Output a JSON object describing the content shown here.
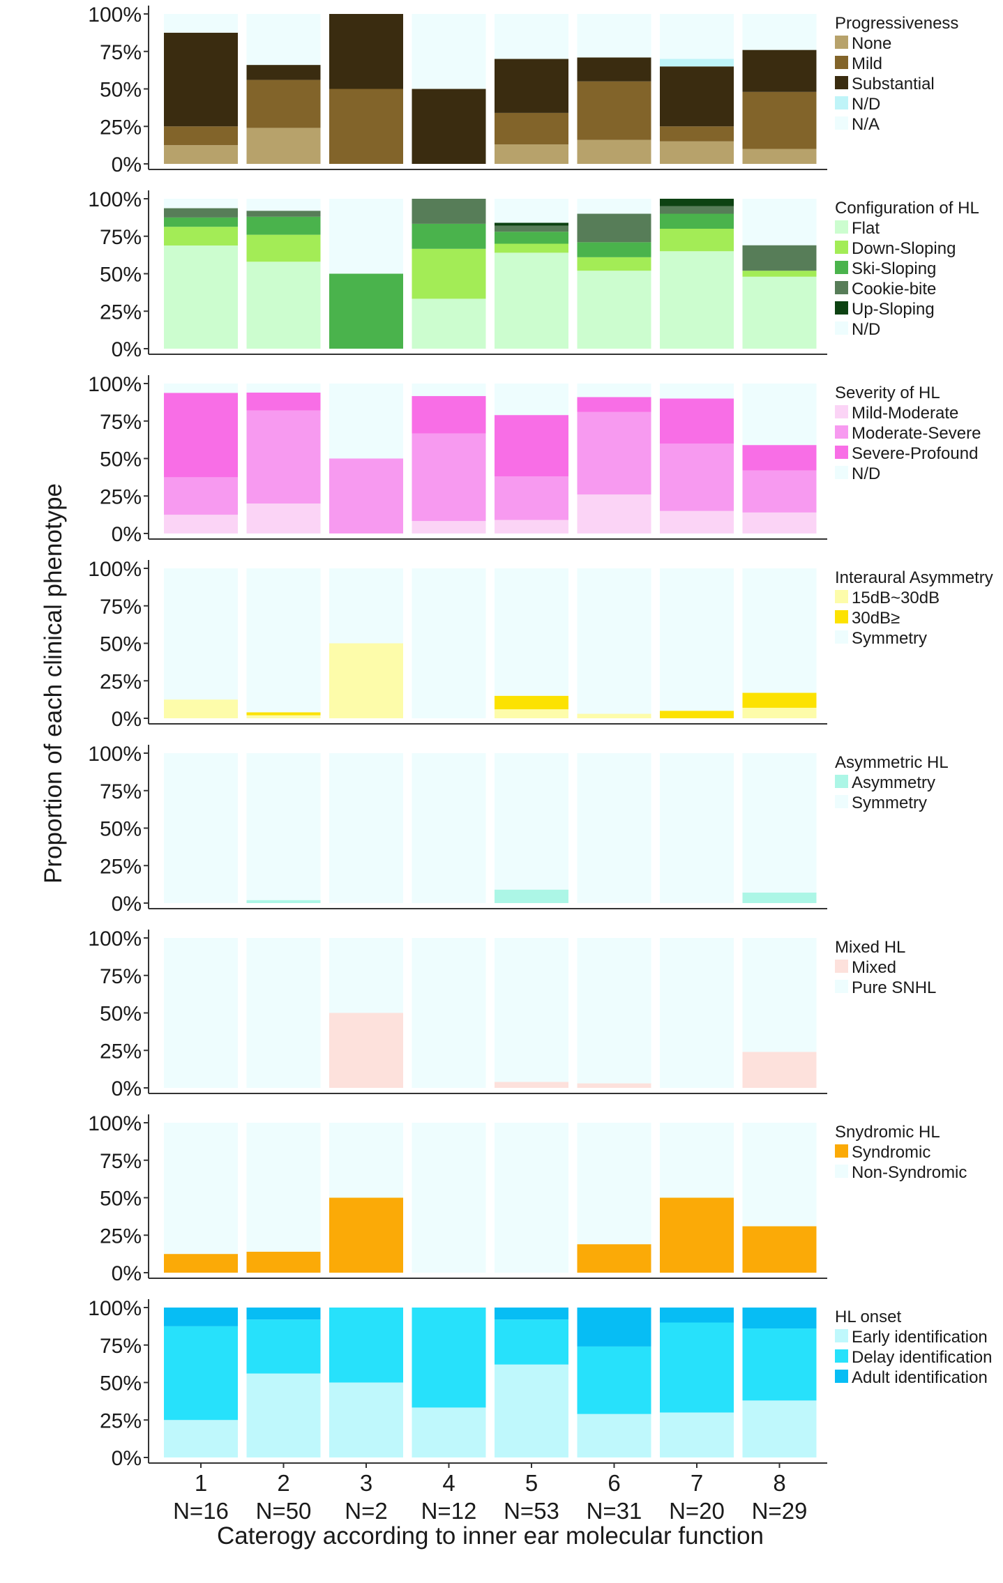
{
  "chart_data": {
    "type": "stacked-bar",
    "ylabel": "Proportion of each clinical phenotype",
    "xlabel": "Caterogy according to inner ear molecular function",
    "categories": [
      "1",
      "2",
      "3",
      "4",
      "5",
      "6",
      "7",
      "8"
    ],
    "sample_sizes": [
      "N=16",
      "N=50",
      "N=2",
      "N=12",
      "N=53",
      "N=31",
      "N=20",
      "N=29"
    ],
    "yticks": [
      "0%",
      "25%",
      "50%",
      "75%",
      "100%"
    ],
    "ylim": [
      0,
      100
    ],
    "panels": [
      {
        "title": "Progressiveness",
        "series": [
          {
            "name": "None",
            "color": "#b7a26b",
            "values": [
              12.5,
              24,
              0,
              0,
              13,
              16,
              15,
              10
            ]
          },
          {
            "name": "Mild",
            "color": "#82642a",
            "values": [
              12.5,
              32,
              50,
              0,
              21,
              39,
              10,
              38
            ]
          },
          {
            "name": "Substantial",
            "color": "#3a2c10",
            "values": [
              62.5,
              10,
              50,
              50,
              36,
              16,
              40,
              28
            ]
          },
          {
            "name": "N/D",
            "color": "#bff4f8",
            "values": [
              0,
              0,
              0,
              0,
              0,
              0,
              5,
              0
            ]
          },
          {
            "name": "N/A",
            "color": "#eefdfe",
            "values": [
              12.5,
              34,
              0,
              50,
              30,
              29,
              30,
              24
            ]
          }
        ]
      },
      {
        "title": "Configuration of HL",
        "series": [
          {
            "name": "Flat",
            "color": "#ccfdcf",
            "values": [
              68.8,
              58,
              0,
              33.3,
              64,
              52,
              65,
              48
            ]
          },
          {
            "name": "Down-Sloping",
            "color": "#a3ec56",
            "values": [
              12.5,
              18,
              0,
              33.3,
              6,
              9,
              15,
              4
            ]
          },
          {
            "name": "Ski-Sloping",
            "color": "#4ab34c",
            "values": [
              6.2,
              12,
              50,
              16.7,
              8,
              10,
              10,
              0
            ]
          },
          {
            "name": "Cookie-bite",
            "color": "#577d58",
            "values": [
              6.2,
              4,
              0,
              16.7,
              4,
              19,
              5,
              17
            ]
          },
          {
            "name": "Up-Sloping",
            "color": "#0d4212",
            "values": [
              0,
              0,
              0,
              0,
              2,
              0,
              5,
              0
            ]
          },
          {
            "name": "N/D",
            "color": "#eefdfe",
            "values": [
              6.3,
              8,
              50,
              0,
              16,
              10,
              0,
              31
            ]
          }
        ]
      },
      {
        "title": "Severity of HL",
        "series": [
          {
            "name": "Mild-Moderate",
            "color": "#fbd4f6",
            "values": [
              12.5,
              20,
              0,
              8.3,
              9,
              26,
              15,
              14
            ]
          },
          {
            "name": "Moderate-Severe",
            "color": "#f79af0",
            "values": [
              25,
              62,
              50,
              58.4,
              29,
              55,
              45,
              28
            ]
          },
          {
            "name": "Severe-Profound",
            "color": "#f86ee6",
            "values": [
              56.3,
              12,
              0,
              25,
              41,
              10,
              30,
              17
            ]
          },
          {
            "name": "N/D",
            "color": "#eefdfe",
            "values": [
              6.2,
              6,
              50,
              8.3,
              21,
              9,
              10,
              41
            ]
          }
        ]
      },
      {
        "title": "Interaural Asymmetry",
        "series": [
          {
            "name": "15dB~30dB",
            "color": "#fdfcaa",
            "values": [
              12.5,
              2,
              50,
              0,
              6,
              3,
              0,
              7
            ]
          },
          {
            "name": "30dB≥",
            "color": "#fce202",
            "values": [
              0,
              2,
              0,
              0,
              9,
              0,
              5,
              10
            ]
          },
          {
            "name": "Symmetry",
            "color": "#eefdfe",
            "values": [
              87.5,
              96,
              50,
              100,
              85,
              97,
              95,
              83
            ]
          }
        ]
      },
      {
        "title": "Asymmetric HL",
        "series": [
          {
            "name": "Asymmetry",
            "color": "#acf6e6",
            "values": [
              0,
              2,
              0,
              0,
              9,
              0,
              0,
              7
            ]
          },
          {
            "name": "Symmetry",
            "color": "#eefdfe",
            "values": [
              100,
              98,
              100,
              100,
              91,
              100,
              100,
              93
            ]
          }
        ]
      },
      {
        "title": "Mixed HL",
        "series": [
          {
            "name": "Mixed",
            "color": "#fde1dc",
            "values": [
              0,
              0,
              50,
              0,
              4,
              3,
              0,
              24
            ]
          },
          {
            "name": "Pure SNHL",
            "color": "#eefdfe",
            "values": [
              100,
              100,
              50,
              100,
              96,
              97,
              100,
              76
            ]
          }
        ]
      },
      {
        "title": "Snydromic HL",
        "series": [
          {
            "name": "Syndromic",
            "color": "#fbaa07",
            "values": [
              12.5,
              14,
              50,
              0,
              0,
              19,
              50,
              31
            ]
          },
          {
            "name": "Non-Syndromic",
            "color": "#eefdfe",
            "values": [
              87.5,
              86,
              50,
              100,
              100,
              81,
              50,
              69
            ]
          }
        ]
      },
      {
        "title": "HL onset",
        "series": [
          {
            "name": "Early identification",
            "color": "#bff8fc",
            "values": [
              25,
              56,
              50,
              33.3,
              62,
              29,
              30,
              38
            ]
          },
          {
            "name": "Delay identification",
            "color": "#27e1fb",
            "values": [
              62.5,
              36,
              50,
              66.7,
              30,
              45,
              60,
              48
            ]
          },
          {
            "name": "Adult identification",
            "color": "#07bdf4",
            "values": [
              12.5,
              8,
              0,
              0,
              8,
              26,
              10,
              14
            ]
          }
        ]
      }
    ]
  }
}
